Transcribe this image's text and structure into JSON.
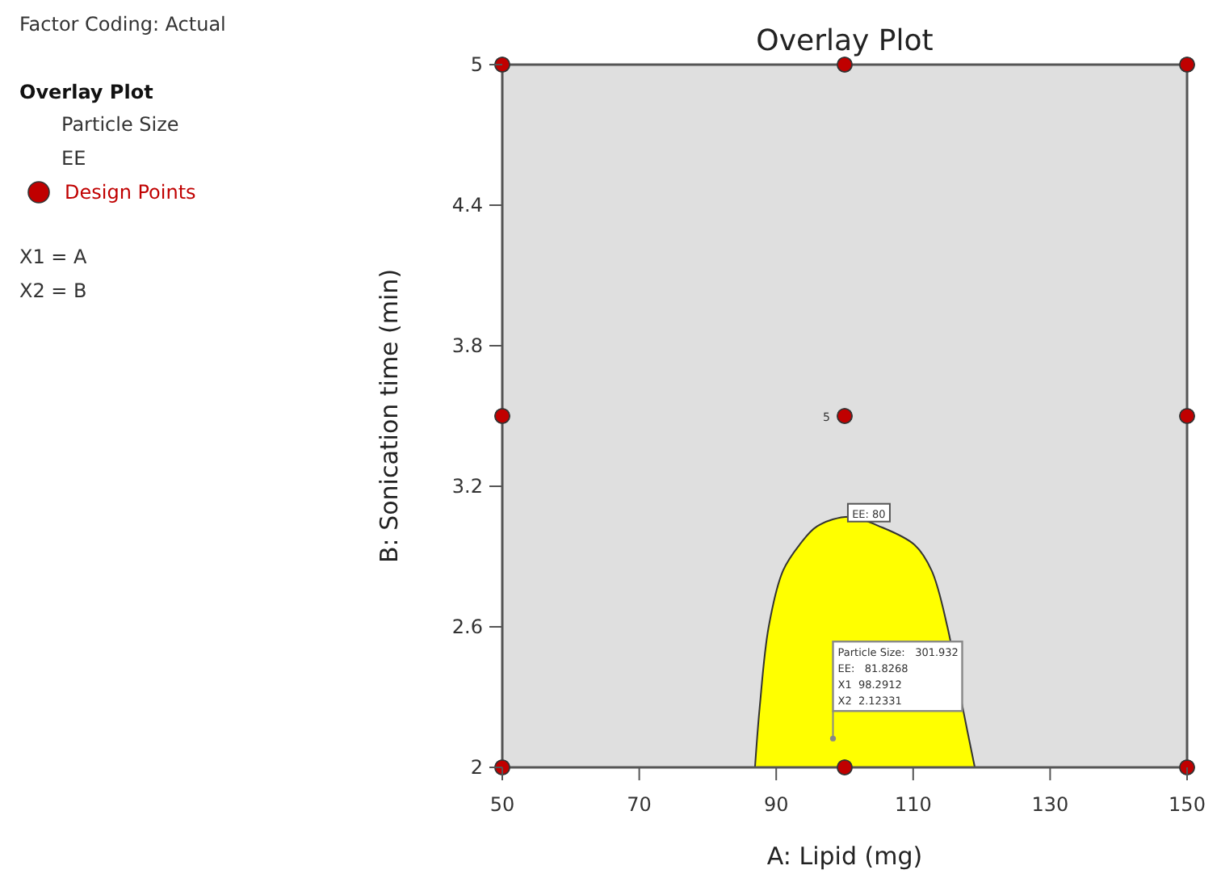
{
  "chart_data": {
    "type": "scatter",
    "title": "Overlay Plot",
    "xlabel": "A: Lipid  (mg)",
    "ylabel": "B: Sonication time  (min)",
    "legend_title": "Overlay Plot",
    "legend": "left",
    "grid": false,
    "xlim": [
      50,
      150
    ],
    "xticks": [
      50,
      70,
      90,
      110,
      130,
      150
    ],
    "ylim": [
      2,
      5
    ],
    "yticks": [
      2,
      2.6,
      3.2,
      3.8,
      4.4,
      5
    ],
    "series": [
      {
        "type": "area",
        "color": "#ffff00",
        "x": [
          86.9,
          87.6,
          88.9,
          91,
          93.4,
          96,
          100.7,
          105,
          110.2,
          112.7,
          115,
          117.2,
          119
        ],
        "values": [
          2,
          2.26,
          2.6,
          2.84,
          2.95,
          3.03,
          3.07,
          3.03,
          2.95,
          2.84,
          2.6,
          2.26,
          2
        ]
      },
      {
        "name": "Design Points",
        "color": "#c00000",
        "marker": "circle",
        "x": [
          50,
          100,
          150,
          50,
          100,
          150,
          50,
          100,
          150
        ],
        "values": [
          5,
          5,
          5,
          3.5,
          3.5,
          3.5,
          2,
          2,
          2
        ]
      }
    ],
    "annotations": [
      "Factor Coding: Actual",
      "Particle Size",
      "EE",
      "X1 = A",
      "X2 = B",
      {
        "text": "5",
        "x": 100,
        "y": 3.5
      },
      {
        "text": "EE: 80",
        "x": 100.7,
        "y": 3.07
      },
      {
        "text": "Particle Size:   301.932\nEE:   81.8268\nX1  98.2912\nX2  2.12331",
        "x": 98.2912,
        "y": 2.12331
      }
    ]
  }
}
